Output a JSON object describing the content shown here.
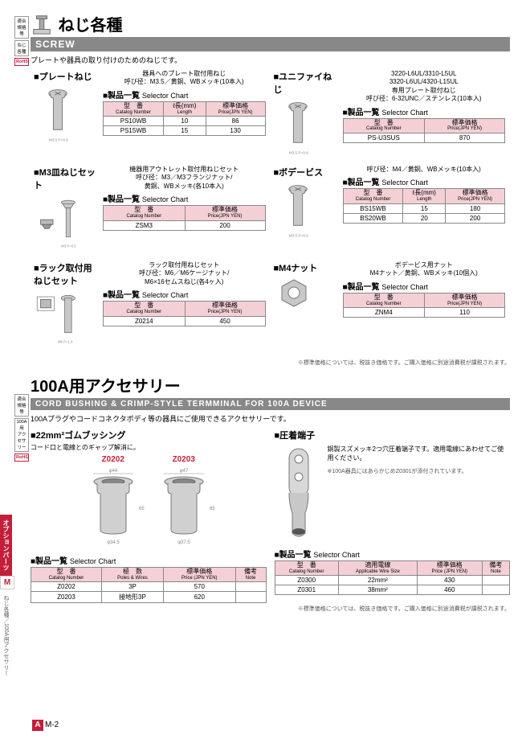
{
  "section1": {
    "title": "ねじ各種",
    "bar": "SCREW",
    "intro": "プレートや器具の取り付けのためのねじです。",
    "blocks": [
      {
        "title": "プレートねじ",
        "sub": "器具へのプレート取付用ねじ\n呼び径：M3.5／黄銅、WBメッキ(10本入)",
        "cols": [
          "型　番",
          "ℓ長(mm)",
          "標準価格"
        ],
        "cols_en": [
          "Catalog Number",
          "Length",
          "Price(JPN YEN)"
        ],
        "rows": [
          [
            "PS10WB",
            "10",
            "86"
          ],
          [
            "PS15WB",
            "15",
            "130"
          ]
        ]
      },
      {
        "title": "ユニファイねじ",
        "sub": "3220-L6UL/3310-L5UL\n3320-L6UL/4320-L15UL\n専用プレート取付ねじ\n呼び径：6-32UNC／ステンレス(10本入)",
        "cols": [
          "型　番",
          "標準価格"
        ],
        "cols_en": [
          "Catalog Number",
          "Price(JPN YEN)"
        ],
        "rows": [
          [
            "PS-U3SUS",
            "870"
          ]
        ]
      },
      {
        "title": "M3皿ねじセット",
        "sub": "機器用アウトレット取付用ねじセット\n呼び径：M3／M3フランジナット/\n黄銅、WBメッキ(各10本入)",
        "cols": [
          "型　番",
          "標準価格"
        ],
        "cols_en": [
          "Catalog Number",
          "Price(JPN YEN)"
        ],
        "rows": [
          [
            "ZSM3",
            "200"
          ]
        ]
      },
      {
        "title": "ボデービス",
        "sub": "呼び径：M4／黄銅、WBメッキ(10本入)",
        "cols": [
          "型　番",
          "ℓ長(mm)",
          "標準価格"
        ],
        "cols_en": [
          "Catalog Number",
          "Length",
          "Price(JPN YEN)"
        ],
        "rows": [
          [
            "BS15WB",
            "15",
            "180"
          ],
          [
            "BS20WB",
            "20",
            "200"
          ]
        ]
      },
      {
        "title": "ラック取付用ねじセット",
        "sub": "ラック取付用ねじセット\n呼び径：M6／M6ケージナット/\nM6×16セムスねじ(各4ヶ入)",
        "cols": [
          "型　番",
          "標準価格"
        ],
        "cols_en": [
          "Catalog Number",
          "Price(JPN YEN)"
        ],
        "rows": [
          [
            "Z0214",
            "450"
          ]
        ]
      },
      {
        "title": "M4ナット",
        "sub": "ボデービス用ナット\nM4ナット／黄銅、WBメッキ(10個入)",
        "cols": [
          "型　番",
          "標準価格"
        ],
        "cols_en": [
          "Catalog Number",
          "Price(JPN YEN)"
        ],
        "rows": [
          [
            "ZNM4",
            "110"
          ]
        ]
      }
    ],
    "selector_label": "製品一覧",
    "selector_en": "Selector Chart",
    "footnote": "※標準価格については、税抜き価格です。ご購入価格に別途消費税が課税されます。"
  },
  "section2": {
    "title": "100A用アクセサリー",
    "bar": "CORD BUSHING & CRIMP-STYLE TERMMINAL FOR 100A DEVICE",
    "intro": "100Aプラグやコードコネクタボディ等の器具にご使用できるアクセサリーです。",
    "bushing": {
      "title": "22mm²ゴムブッシング",
      "desc": "コード口と電線とのギャップ解消に。",
      "items": [
        {
          "label": "Z0202",
          "od": "φ44",
          "id": "φ34.5",
          "d": "φ28"
        },
        {
          "label": "Z0203",
          "od": "φ47",
          "id": "φ37.5",
          "d": "φ30"
        }
      ],
      "h": "65",
      "cols": [
        "型　番",
        "極　数",
        "標準価格",
        "備考"
      ],
      "cols_en": [
        "Catalog Number",
        "Poles & Wires",
        "Price (JPN YEN)",
        "Note"
      ],
      "rows": [
        [
          "Z0202",
          "3P",
          "570",
          ""
        ],
        [
          "Z0203",
          "接地形3P",
          "620",
          ""
        ]
      ]
    },
    "crimp": {
      "title": "圧着端子",
      "text": "銅製スズメッキ2つ穴圧着端子です。適用電線にあわせてご使用ください。",
      "note": "※100A器具にはあらかじめZ0301が添付されています。",
      "cols": [
        "型　番",
        "適用電線",
        "標準価格",
        "備考"
      ],
      "cols_en": [
        "Catalog Number",
        "Applicable Wire Size",
        "Price (JPN YEN)",
        "Note"
      ],
      "rows": [
        [
          "Z0300",
          "22mm²",
          "430",
          ""
        ],
        [
          "Z0301",
          "38mm²",
          "460",
          ""
        ]
      ]
    },
    "footnote": "※標準価格については、税抜き価格です。ご購入価格に別途消費税が課税されます。"
  },
  "badges": {
    "compliance": "適合規格等",
    "rohs": "RoHS",
    "cat1": "ねじ各種",
    "cat2": "100A用\nアクセサリー"
  },
  "side": {
    "tab": "オプションパーツ",
    "m": "M",
    "text": "ねじ各種／100A用アクセサリー"
  },
  "page_num": "M-2"
}
